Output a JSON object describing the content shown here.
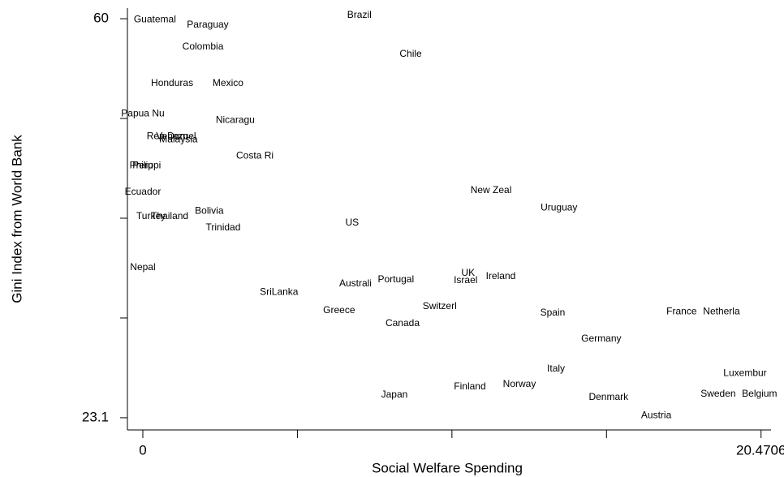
{
  "chart_data": {
    "type": "scatter",
    "x_label": "Social Welfare Spending",
    "y_label": "Gini Index from World Bank",
    "xlim": [
      -0.51,
      20.8
    ],
    "ylim": [
      21.97,
      60.98
    ],
    "xticks": [
      0,
      20.4706
    ],
    "xminor": [
      5.11765,
      10.2353,
      15.35295
    ],
    "yticks": [
      23.1,
      60
    ],
    "yminor": [
      32.325,
      41.55,
      50.775
    ],
    "labels": [
      "Guatemal",
      "Paraguay",
      "Brazil",
      "Colombia",
      "Chile",
      "Honduras",
      "Mexico",
      "Papua Nu",
      "Nicaragu",
      "Venezuel",
      "Rep Dom",
      "Malaysia",
      "Costa Ri",
      "Philippi",
      "Peru",
      "Ecuador",
      "Turkey",
      "Thailand",
      "Bolivia",
      "Trinidad",
      "US",
      "New Zeal",
      "Uruguay",
      "Nepal",
      "SriLanka",
      "Australi",
      "Portugal",
      "UK",
      "Israel",
      "Ireland",
      "Greece",
      "Switzerl",
      "Canada",
      "Spain",
      "France",
      "Netherla",
      "Germany",
      "Italy",
      "Luxembur",
      "Japan",
      "Finland",
      "Norway",
      "Denmark",
      "Sweden",
      "Belgium",
      "Austria"
    ],
    "x": [
      0.4,
      2.15,
      7.17,
      1.99,
      8.87,
      0.97,
      2.82,
      0,
      3.06,
      1.1,
      0.81,
      1.18,
      3.71,
      0.08,
      0,
      0,
      0.27,
      0.89,
      2.2,
      2.66,
      6.93,
      11.53,
      13.78,
      0,
      4.51,
      7.04,
      8.38,
      10.77,
      10.69,
      11.85,
      6.5,
      9.83,
      8.6,
      13.57,
      17.84,
      19.16,
      15.18,
      13.68,
      19.94,
      8.33,
      10.83,
      12.47,
      15.42,
      19.05,
      20.42,
      17.0
    ],
    "y": [
      59.9,
      59.4,
      60.3,
      57.4,
      56.7,
      54.0,
      54.0,
      51.2,
      50.6,
      49.1,
      49.1,
      48.8,
      47.3,
      46.4,
      46.4,
      43.95,
      41.7,
      41.7,
      42.2,
      40.65,
      41.1,
      44.1,
      42.5,
      37.0,
      34.7,
      35.5,
      35.85,
      36.45,
      35.8,
      36.15,
      33.0,
      33.4,
      31.8,
      32.8,
      32.9,
      32.9,
      30.4,
      27.6,
      27.2,
      25.2,
      25.95,
      26.2,
      25.0,
      25.3,
      25.3,
      23.3
    ]
  }
}
